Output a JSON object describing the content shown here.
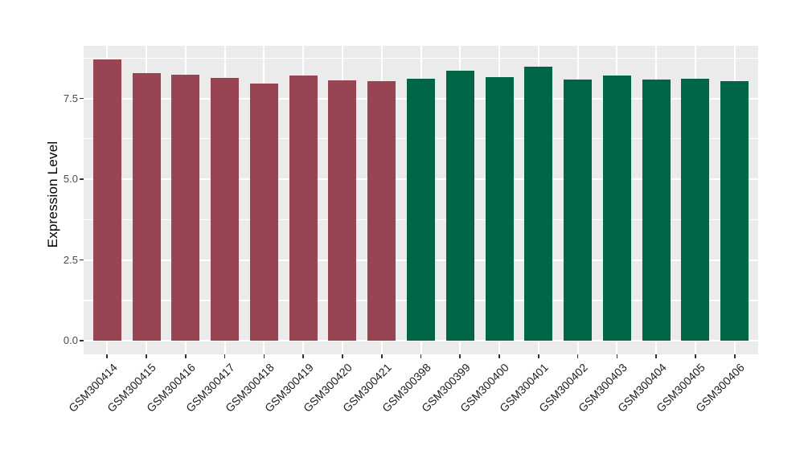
{
  "chart_data": {
    "type": "bar",
    "title": "",
    "xlabel": "",
    "ylabel": "Expression Level",
    "ylim": [
      -0.42,
      9.13
    ],
    "grid": true,
    "legend": "none",
    "panel_bg": "#EBEBEB",
    "grid_color": "#FFFFFF",
    "ytick_values": [
      0,
      2.5,
      5,
      7.5
    ],
    "ytick_labels": [
      "0.0",
      "2.5",
      "5.0",
      "7.5"
    ],
    "minor_gridline_values": [
      1.25,
      3.75,
      6.25,
      8.75
    ],
    "group_colors": {
      "group1": "#994452",
      "group2": "#006647"
    },
    "categories": [
      "GSM300414",
      "GSM300415",
      "GSM300416",
      "GSM300417",
      "GSM300418",
      "GSM300419",
      "GSM300420",
      "GSM300421",
      "GSM300398",
      "GSM300399",
      "GSM300400",
      "GSM300401",
      "GSM300402",
      "GSM300403",
      "GSM300404",
      "GSM300405",
      "GSM300406"
    ],
    "bars": [
      {
        "label": "GSM300414",
        "value": 8.71,
        "group": "group1"
      },
      {
        "label": "GSM300415",
        "value": 8.28,
        "group": "group1"
      },
      {
        "label": "GSM300416",
        "value": 8.23,
        "group": "group1"
      },
      {
        "label": "GSM300417",
        "value": 8.13,
        "group": "group1"
      },
      {
        "label": "GSM300418",
        "value": 7.97,
        "group": "group1"
      },
      {
        "label": "GSM300419",
        "value": 8.22,
        "group": "group1"
      },
      {
        "label": "GSM300420",
        "value": 8.06,
        "group": "group1"
      },
      {
        "label": "GSM300421",
        "value": 8.04,
        "group": "group1"
      },
      {
        "label": "GSM300398",
        "value": 8.12,
        "group": "group2"
      },
      {
        "label": "GSM300399",
        "value": 8.37,
        "group": "group2"
      },
      {
        "label": "GSM300400",
        "value": 8.17,
        "group": "group2"
      },
      {
        "label": "GSM300401",
        "value": 8.49,
        "group": "group2"
      },
      {
        "label": "GSM300402",
        "value": 8.08,
        "group": "group2"
      },
      {
        "label": "GSM300403",
        "value": 8.21,
        "group": "group2"
      },
      {
        "label": "GSM300404",
        "value": 8.09,
        "group": "group2"
      },
      {
        "label": "GSM300405",
        "value": 8.12,
        "group": "group2"
      },
      {
        "label": "GSM300406",
        "value": 8.04,
        "group": "group2"
      }
    ]
  }
}
